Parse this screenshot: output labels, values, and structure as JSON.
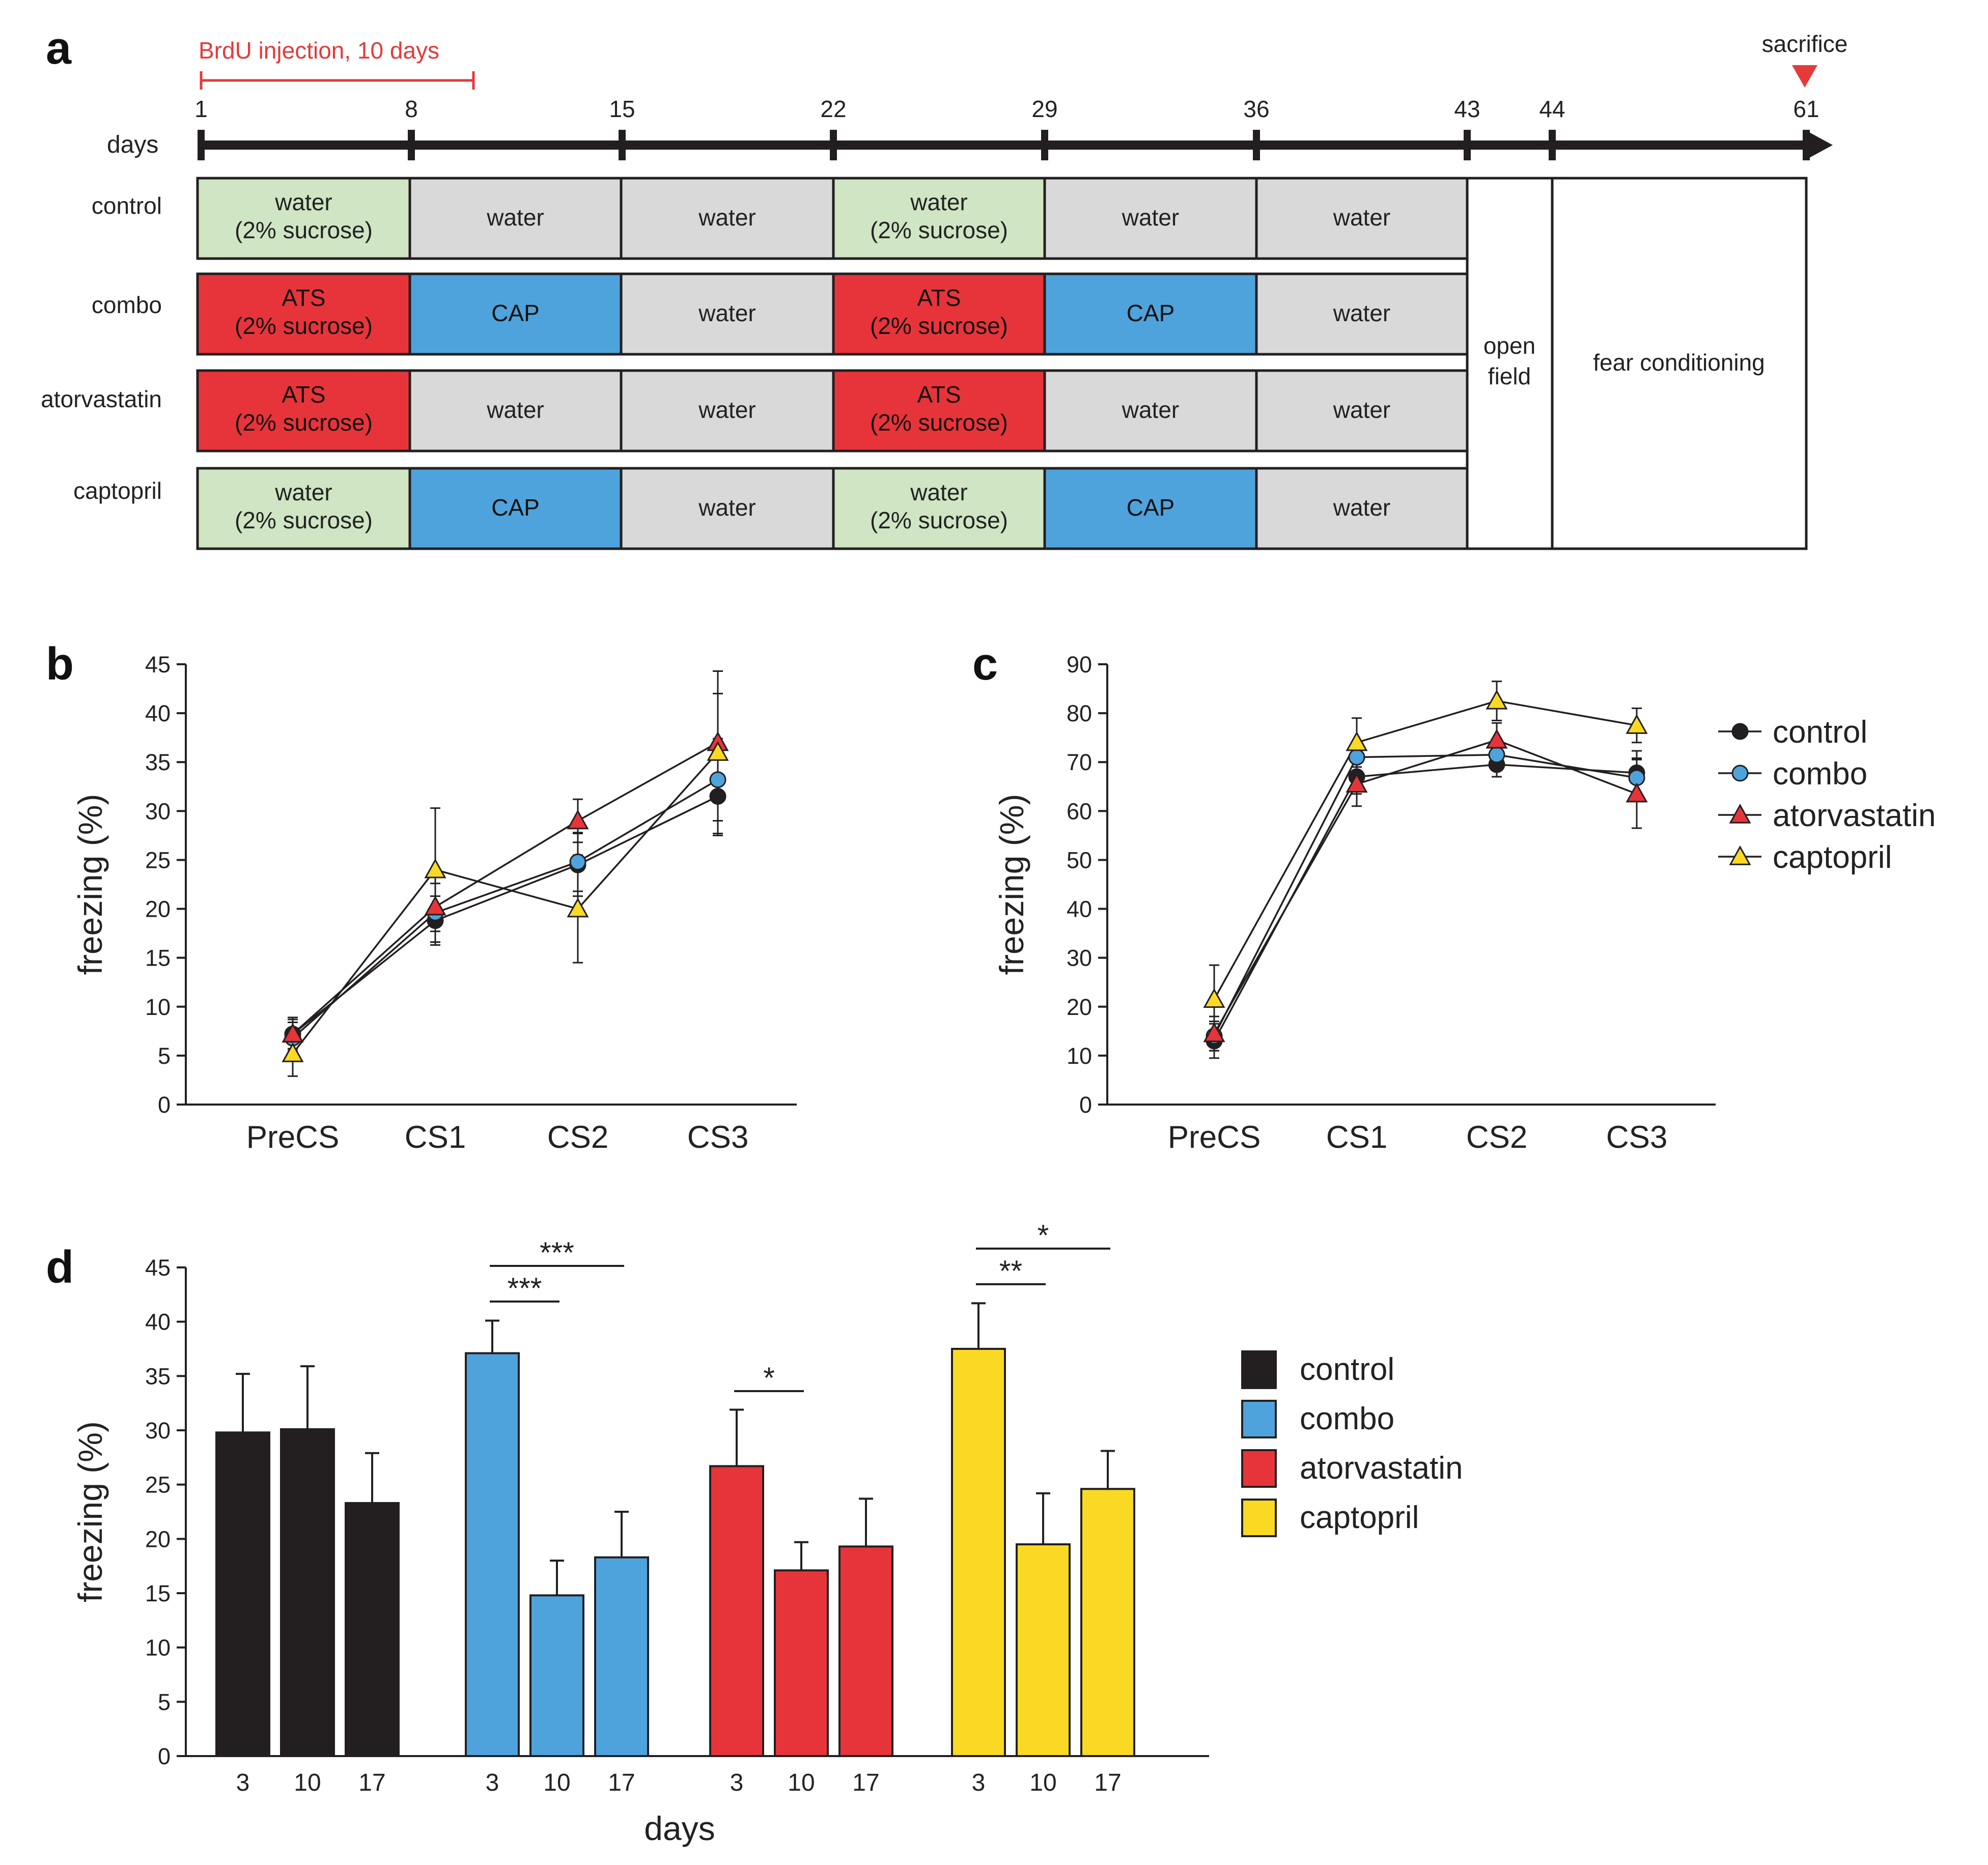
{
  "panels": {
    "a": "a",
    "b": "b",
    "c": "c",
    "d": "d"
  },
  "colors": {
    "control": "#231f20",
    "combo": "#4fa3dc",
    "atorvastatin": "#e7343a",
    "captopril": "#fad924",
    "water_sucrose": "#cfe5c3",
    "water": "#d9d9d9",
    "ats": "#e7343a",
    "cap": "#4fa3dc",
    "brdu": "#e53a3a",
    "axis": "#231f20"
  },
  "timeline": {
    "brdu_label": "BrdU injection, 10 days",
    "sacrifice_label": "sacrifice",
    "days_label": "days",
    "ticks": [
      "1",
      "8",
      "15",
      "22",
      "29",
      "36",
      "43",
      "44",
      "61"
    ],
    "rows": [
      {
        "label": "control",
        "cells": [
          {
            "type": "water_sucrose",
            "text": [
              "water",
              "(2% sucrose)"
            ]
          },
          {
            "type": "water",
            "text": [
              "water"
            ]
          },
          {
            "type": "water",
            "text": [
              "water"
            ]
          },
          {
            "type": "water_sucrose",
            "text": [
              "water",
              "(2% sucrose)"
            ]
          },
          {
            "type": "water",
            "text": [
              "water"
            ]
          },
          {
            "type": "water",
            "text": [
              "water"
            ]
          }
        ]
      },
      {
        "label": "combo",
        "cells": [
          {
            "type": "ats",
            "text": [
              "ATS",
              "(2% sucrose)"
            ]
          },
          {
            "type": "cap",
            "text": [
              "CAP"
            ]
          },
          {
            "type": "water",
            "text": [
              "water"
            ]
          },
          {
            "type": "ats",
            "text": [
              "ATS",
              "(2% sucrose)"
            ]
          },
          {
            "type": "cap",
            "text": [
              "CAP"
            ]
          },
          {
            "type": "water",
            "text": [
              "water"
            ]
          }
        ]
      },
      {
        "label": "atorvastatin",
        "cells": [
          {
            "type": "ats",
            "text": [
              "ATS",
              "(2% sucrose)"
            ]
          },
          {
            "type": "water",
            "text": [
              "water"
            ]
          },
          {
            "type": "water",
            "text": [
              "water"
            ]
          },
          {
            "type": "ats",
            "text": [
              "ATS",
              "(2% sucrose)"
            ]
          },
          {
            "type": "water",
            "text": [
              "water"
            ]
          },
          {
            "type": "water",
            "text": [
              "water"
            ]
          }
        ]
      },
      {
        "label": "captopril",
        "cells": [
          {
            "type": "water_sucrose",
            "text": [
              "water",
              "(2% sucrose)"
            ]
          },
          {
            "type": "cap",
            "text": [
              "CAP"
            ]
          },
          {
            "type": "water",
            "text": [
              "water"
            ]
          },
          {
            "type": "water_sucrose",
            "text": [
              "water",
              "(2% sucrose)"
            ]
          },
          {
            "type": "cap",
            "text": [
              "CAP"
            ]
          },
          {
            "type": "water",
            "text": [
              "water"
            ]
          }
        ]
      }
    ],
    "open_field": [
      "open",
      "field"
    ],
    "fear_conditioning": "fear conditioning"
  },
  "chart_data": [
    {
      "panel": "b",
      "type": "line",
      "categories": [
        "PreCS",
        "CS1",
        "CS2",
        "CS3"
      ],
      "ylabel": "freezing (%)",
      "ylim": [
        0,
        45
      ],
      "yticks": [
        "0",
        "5",
        "10",
        "15",
        "20",
        "25",
        "30",
        "35",
        "40",
        "45"
      ],
      "series": [
        {
          "name": "control",
          "marker": "circle",
          "values": [
            7.2,
            18.8,
            24.5,
            31.5
          ],
          "errors": [
            1.5,
            2.5,
            3.2,
            4.0
          ]
        },
        {
          "name": "combo",
          "marker": "circle",
          "values": [
            6.8,
            19.6,
            24.8,
            33.2
          ],
          "errors": [
            1.6,
            3.0,
            3.0,
            4.2
          ]
        },
        {
          "name": "atorvastatin",
          "marker": "triangle",
          "values": [
            7.2,
            20.2,
            29.0,
            37.0
          ],
          "errors": [
            1.7,
            3.6,
            2.2,
            5.0
          ]
        },
        {
          "name": "captopril",
          "marker": "triangle",
          "values": [
            5.2,
            24.0,
            20.0,
            36.0
          ],
          "errors": [
            2.3,
            6.3,
            5.5,
            8.3
          ]
        }
      ]
    },
    {
      "panel": "c",
      "type": "line",
      "categories": [
        "PreCS",
        "CS1",
        "CS2",
        "CS3"
      ],
      "ylabel": "freezing (%)",
      "ylim": [
        0,
        90
      ],
      "yticks": [
        "0",
        "10",
        "20",
        "30",
        "40",
        "50",
        "60",
        "70",
        "80",
        "90"
      ],
      "series": [
        {
          "name": "control",
          "marker": "circle",
          "values": [
            13.0,
            67.0,
            69.5,
            67.8
          ],
          "errors": [
            3.5,
            3.5,
            2.5,
            4.5
          ]
        },
        {
          "name": "combo",
          "marker": "circle",
          "values": [
            14.0,
            71.0,
            71.5,
            66.8
          ],
          "errors": [
            3.0,
            3.0,
            2.8,
            4.0
          ]
        },
        {
          "name": "atorvastatin",
          "marker": "triangle",
          "values": [
            14.5,
            65.5,
            74.5,
            63.5
          ],
          "errors": [
            3.5,
            4.5,
            3.5,
            7.0
          ]
        },
        {
          "name": "captopril",
          "marker": "triangle",
          "values": [
            21.5,
            74.0,
            82.5,
            77.5
          ],
          "errors": [
            7.0,
            5.0,
            4.0,
            3.5
          ]
        }
      ],
      "legend": [
        "control",
        "combo",
        "atorvastatin",
        "captopril"
      ]
    },
    {
      "panel": "d",
      "type": "bar",
      "xlabel": "days",
      "ylabel": "freezing (%)",
      "ylim": [
        0,
        45
      ],
      "yticks": [
        "0",
        "5",
        "10",
        "15",
        "20",
        "25",
        "30",
        "35",
        "40",
        "45"
      ],
      "categories": [
        "3",
        "10",
        "17"
      ],
      "series": [
        {
          "name": "control",
          "values": [
            29.8,
            30.1,
            23.3
          ],
          "errors": [
            5.4,
            5.8,
            4.6
          ]
        },
        {
          "name": "combo",
          "values": [
            37.1,
            14.8,
            18.3
          ],
          "errors": [
            3.0,
            3.2,
            4.2
          ]
        },
        {
          "name": "atorvastatin",
          "values": [
            26.7,
            17.1,
            19.3
          ],
          "errors": [
            5.2,
            2.6,
            4.4
          ]
        },
        {
          "name": "captopril",
          "values": [
            37.5,
            19.5,
            24.6
          ],
          "errors": [
            4.2,
            4.7,
            3.5
          ]
        }
      ],
      "significance": [
        {
          "group": "combo",
          "from": 0,
          "to": 1,
          "label": "***"
        },
        {
          "group": "combo",
          "from": 0,
          "to": 2,
          "label": "***"
        },
        {
          "group": "atorvastatin",
          "from": 0,
          "to": 1,
          "label": "*"
        },
        {
          "group": "captopril",
          "from": 0,
          "to": 1,
          "label": "**"
        },
        {
          "group": "captopril",
          "from": 0,
          "to": 2,
          "label": "*"
        }
      ],
      "legend": [
        "control",
        "combo",
        "atorvastatin",
        "captopril"
      ]
    }
  ]
}
